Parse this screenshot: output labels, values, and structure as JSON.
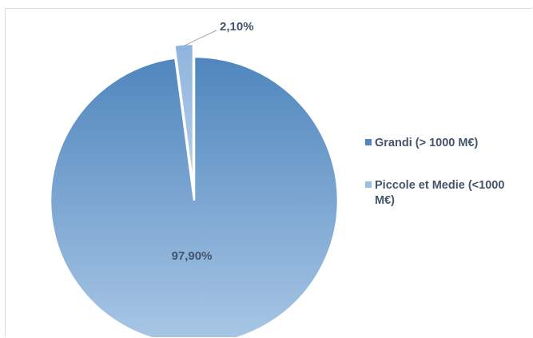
{
  "chart_data": {
    "type": "pie",
    "title": "",
    "categories": [
      "Grandi (> 1000 M€)",
      "Piccole et Medie (<1000 M€)"
    ],
    "values": [
      97.9,
      2.1
    ],
    "data_labels": [
      "97,90%",
      "2,10%"
    ],
    "colors": [
      "#4f86bd",
      "#9cbfe0"
    ],
    "legend_position": "right",
    "legend": [
      {
        "lines": [
          "Grandi (> 1000 M€)"
        ]
      },
      {
        "lines": [
          "Piccole et Medie (<1000",
          "M€)"
        ]
      }
    ]
  }
}
